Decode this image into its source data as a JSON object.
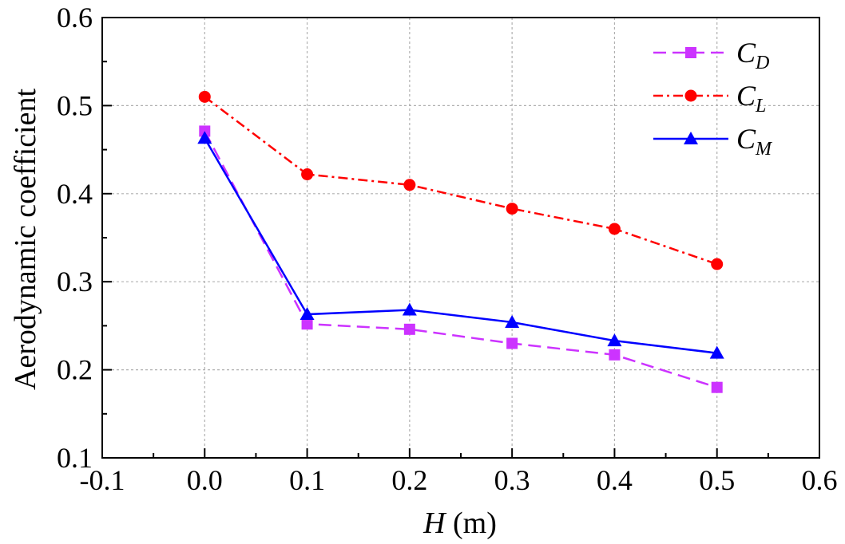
{
  "chart_data": {
    "type": "line",
    "title": "",
    "xlabel": {
      "symbol": "H",
      "unit": " (m)"
    },
    "ylabel": "Aerodynamic coefficient",
    "xlim": [
      -0.1,
      0.6
    ],
    "ylim": [
      0.1,
      0.6
    ],
    "xticks": [
      "-0.1",
      "0.0",
      "0.1",
      "0.2",
      "0.3",
      "0.4",
      "0.5",
      "0.6"
    ],
    "yticks": [
      "0.1",
      "0.2",
      "0.3",
      "0.4",
      "0.5",
      "0.6"
    ],
    "grid": true,
    "legend_position": "top-right",
    "x": [
      0.0,
      0.1,
      0.2,
      0.3,
      0.4,
      0.5
    ],
    "series": [
      {
        "name": "C",
        "subscript": "D",
        "values": [
          0.471,
          0.252,
          0.246,
          0.23,
          0.217,
          0.18
        ],
        "color": "#CC33FF",
        "marker": "square",
        "dash": "dashed"
      },
      {
        "name": "C",
        "subscript": "L",
        "values": [
          0.51,
          0.422,
          0.41,
          0.383,
          0.36,
          0.32
        ],
        "color": "#FF0000",
        "marker": "circle",
        "dash": "dashdot"
      },
      {
        "name": "C",
        "subscript": "M",
        "values": [
          0.463,
          0.263,
          0.268,
          0.254,
          0.233,
          0.219
        ],
        "color": "#0000FF",
        "marker": "triangle",
        "dash": "solid"
      }
    ]
  }
}
